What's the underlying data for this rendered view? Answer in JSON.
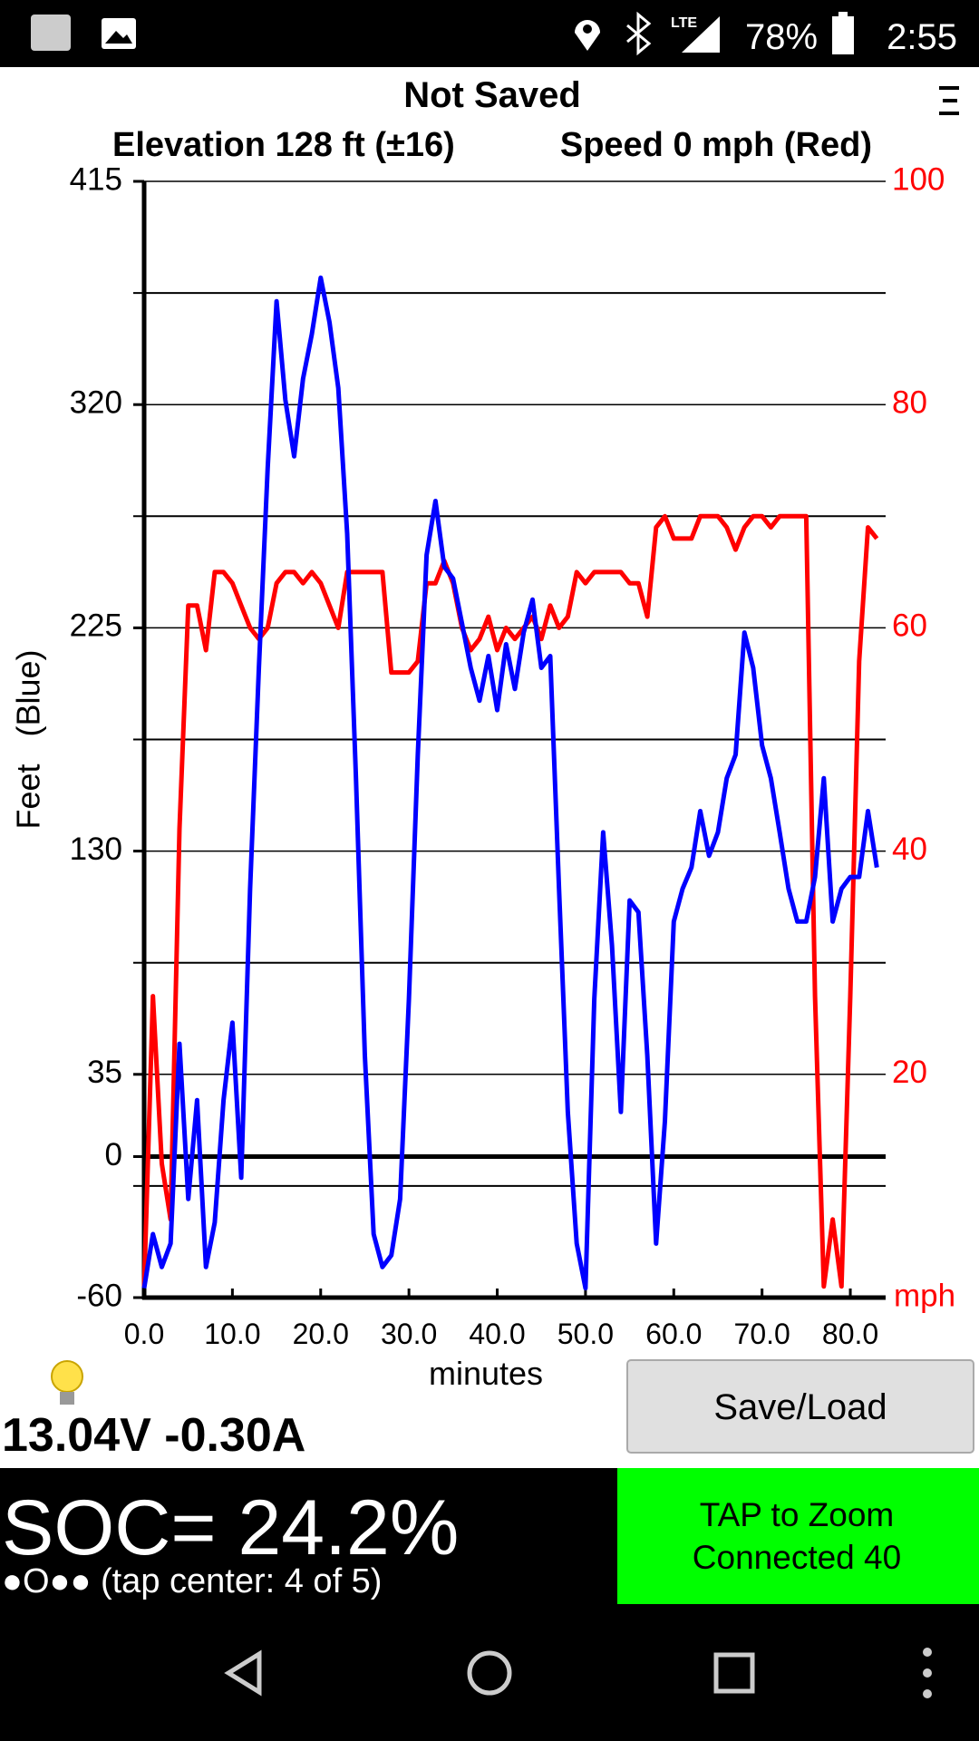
{
  "status_bar": {
    "network": "LTE",
    "battery": "78%",
    "time": "2:55"
  },
  "header": {
    "title": "Not Saved",
    "elevation": "Elevation 128 ft (±16)",
    "speed": "Speed 0 mph (Red)"
  },
  "chart_data": {
    "type": "line",
    "xlabel": "minutes",
    "ylabel": "Feet   (Blue)",
    "y2label": "mph",
    "x": [
      0,
      1,
      2,
      3,
      4,
      5,
      6,
      7,
      8,
      9,
      10,
      11,
      12,
      13,
      14,
      15,
      16,
      17,
      18,
      19,
      20,
      21,
      22,
      23,
      24,
      25,
      26,
      27,
      28,
      29,
      30,
      31,
      32,
      33,
      34,
      35,
      36,
      37,
      38,
      39,
      40,
      41,
      42,
      43,
      44,
      45,
      46,
      47,
      48,
      49,
      50,
      51,
      52,
      53,
      54,
      55,
      56,
      57,
      58,
      59,
      60,
      61,
      62,
      63,
      64,
      65,
      66,
      67,
      68,
      69,
      70,
      71,
      72,
      73,
      74,
      75,
      76,
      77,
      78,
      79,
      80,
      81,
      82,
      83
    ],
    "series": [
      {
        "color": "#0000ff",
        "values": [
          -56,
          -33,
          -47,
          -37,
          48,
          -18,
          24,
          -47,
          -28,
          24,
          57,
          -9,
          114,
          208,
          293,
          364,
          322,
          298,
          331,
          350,
          374,
          355,
          327,
          265,
          161,
          43,
          -33,
          -47,
          -42,
          -18,
          67,
          171,
          256,
          279,
          251,
          246,
          227,
          208,
          194,
          213,
          190,
          218,
          199,
          223,
          237,
          208,
          213,
          114,
          19,
          -37,
          -56,
          67,
          138,
          90,
          19,
          109,
          104,
          43,
          -37,
          15,
          100,
          114,
          123,
          147,
          128,
          138,
          161,
          171,
          223,
          208,
          175,
          161,
          138,
          114,
          100,
          100,
          119,
          161,
          100,
          114,
          119,
          119,
          147,
          123
        ]
      },
      {
        "color": "#ff0000",
        "axis": "y2",
        "values": [
          1,
          27,
          12,
          7,
          42,
          62,
          62,
          58,
          65,
          65,
          64,
          62,
          60,
          59,
          60,
          64,
          65,
          65,
          64,
          65,
          64,
          62,
          60,
          65,
          65,
          65,
          65,
          65,
          56,
          56,
          56,
          57,
          64,
          64,
          66,
          64,
          60,
          58,
          59,
          61,
          58,
          60,
          59,
          60,
          61,
          59,
          62,
          60,
          61,
          65,
          64,
          65,
          65,
          65,
          65,
          64,
          64,
          61,
          69,
          70,
          68,
          68,
          68,
          70,
          70,
          70,
          69,
          67,
          69,
          70,
          70,
          69,
          70,
          70,
          70,
          70,
          27,
          1,
          7,
          1,
          27,
          57,
          69,
          68
        ]
      }
    ],
    "xlim": [
      0,
      84
    ],
    "xticks": [
      {
        "value": 0,
        "label": "0.0"
      },
      {
        "value": 10,
        "label": "10.0"
      },
      {
        "value": 20,
        "label": "20.0"
      },
      {
        "value": 30,
        "label": "30.0"
      },
      {
        "value": 40,
        "label": "40.0"
      },
      {
        "value": 50,
        "label": "50.0"
      },
      {
        "value": 60,
        "label": "60.0"
      },
      {
        "value": 70,
        "label": "70.0"
      },
      {
        "value": 80,
        "label": "80.0"
      }
    ],
    "ylim": [
      -60,
      415
    ],
    "yticks": [
      415,
      320,
      225,
      130,
      35,
      0,
      -60
    ],
    "y2lim": [
      0,
      100
    ],
    "y2ticks": [
      20,
      40,
      60,
      80,
      100
    ],
    "y2minorticks": [
      10,
      30,
      50,
      70,
      90
    ],
    "grid": true
  },
  "footer": {
    "reading": "13.04V -0.30A",
    "button": "Save/Load",
    "soc": "SOC= 24.2%",
    "pager": "●O●● (tap center: 4 of 5)",
    "zoom": "TAP to Zoom",
    "connection": "Connected 40"
  }
}
